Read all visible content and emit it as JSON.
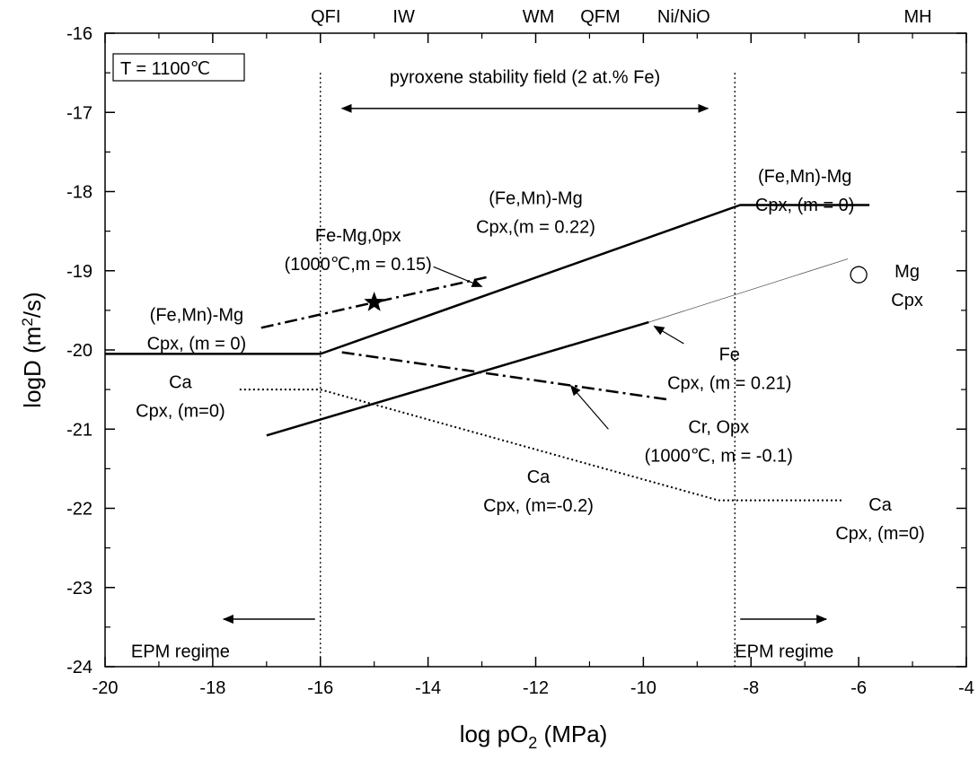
{
  "chart_data": {
    "type": "line",
    "xlabel_main": "log pO",
    "xlabel_sub": "2",
    "xlabel_unit": " (MPa)",
    "ylabel_main": "logD (m",
    "ylabel_sup": "2",
    "ylabel_unit": "/s)",
    "xlim": [
      -20,
      -4
    ],
    "ylim": [
      -24,
      -16
    ],
    "x_ticks": [
      -20,
      -18,
      -16,
      -14,
      -12,
      -10,
      -8,
      -6,
      -4
    ],
    "y_ticks": [
      -24,
      -23,
      -22,
      -21,
      -20,
      -19,
      -18,
      -17,
      -16
    ],
    "x_tick_labels": [
      "-20",
      "-18",
      "-16",
      "-14",
      "-12",
      "-10",
      "-8",
      "-6",
      "-4"
    ],
    "y_tick_labels": [
      "-24",
      "-23",
      "-22",
      "-21",
      "-20",
      "-19",
      "-18",
      "-17",
      "-16"
    ],
    "top_labels": [
      {
        "text": "QFI",
        "x": -15.9
      },
      {
        "text": "IW",
        "x": -14.45
      },
      {
        "text": "WM",
        "x": -11.95
      },
      {
        "text": "QFM",
        "x": -10.8
      },
      {
        "text": "Ni/NiO",
        "x": -9.25
      },
      {
        "text": "MH",
        "x": -4.9
      }
    ],
    "temperature_label": "T = 1100℃",
    "vlines": [
      -16,
      -8.3
    ],
    "stability_field": {
      "label": "pyroxene stability field (2 at.% Fe)",
      "x_from": -15.6,
      "x_to": -8.8,
      "y": -16.95,
      "label_y": -16.55,
      "label_x": -12.2
    },
    "epm_left": {
      "label": "EPM regime",
      "arrow_from": -16.1,
      "arrow_to": -17.8,
      "y": -23.4,
      "label_x": -18.6,
      "label_y": -23.8
    },
    "epm_right": {
      "label": "EPM regime",
      "arrow_from": -8.2,
      "arrow_to": -6.6,
      "y": -23.4,
      "label_x": -8.3,
      "label_y": -23.8
    },
    "series": [
      {
        "style": "solid",
        "color": "#000000",
        "width": 2.5,
        "x": [
          -20,
          -16,
          -8.2,
          -5.8
        ],
        "y": [
          -20.05,
          -20.05,
          -18.17,
          -18.17
        ]
      },
      {
        "style": "solid",
        "color": "#000000",
        "width": 2.5,
        "x": [
          -17,
          -9.9
        ],
        "y": [
          -21.08,
          -19.65
        ]
      },
      {
        "style": "thin",
        "color": "#555555",
        "width": 0.8,
        "x": [
          -9.9,
          -6.2
        ],
        "y": [
          -19.65,
          -18.85
        ]
      },
      {
        "style": "dashdot",
        "color": "#000000",
        "width": 2.5,
        "x": [
          -17.1,
          -12.9
        ],
        "y": [
          -19.72,
          -19.08
        ]
      },
      {
        "style": "dashdot",
        "color": "#000000",
        "width": 2.5,
        "x": [
          -15.6,
          -9.5
        ],
        "y": [
          -20.03,
          -20.63
        ]
      },
      {
        "style": "dotted",
        "color": "#000000",
        "width": 2,
        "x": [
          -17.5,
          -16,
          -8.6,
          -6.3
        ],
        "y": [
          -20.5,
          -20.5,
          -21.9,
          -21.9
        ]
      }
    ],
    "markers": [
      {
        "shape": "star",
        "x": -15.0,
        "y": -19.4
      },
      {
        "shape": "circle",
        "x": -6.0,
        "y": -19.05
      }
    ],
    "arrows": [
      {
        "x1": -13.9,
        "y1": -18.95,
        "x2": -13.0,
        "y2": -19.2
      },
      {
        "x1": -9.25,
        "y1": -19.92,
        "x2": -9.8,
        "y2": -19.7
      },
      {
        "x1": -10.65,
        "y1": -21.0,
        "x2": -11.35,
        "y2": -20.45
      }
    ],
    "annotations": [
      {
        "lines": [
          "(Fe,Mn)-Mg",
          "Cpx,(m = 0.22)"
        ],
        "x": -12.0,
        "y": -18.08
      },
      {
        "lines": [
          "(Fe,Mn)-Mg",
          "Cpx, (m = 0)"
        ],
        "x": -7.0,
        "y": -17.8
      },
      {
        "lines": [
          "Fe-Mg,0px",
          "(1000℃,m = 0.15)"
        ],
        "x": -15.3,
        "y": -18.55
      },
      {
        "lines": [
          "(Fe,Mn)-Mg",
          "Cpx, (m = 0)"
        ],
        "x": -18.3,
        "y": -19.55
      },
      {
        "lines": [
          "Mg",
          "Cpx"
        ],
        "x": -5.1,
        "y": -19.0
      },
      {
        "lines": [
          "Fe",
          "Cpx, (m = 0.21)"
        ],
        "x": -8.4,
        "y": -20.05
      },
      {
        "lines": [
          "Ca",
          "Cpx, (m=0)"
        ],
        "x": -18.6,
        "y": -20.4
      },
      {
        "lines": [
          "Cr, Opx",
          "(1000℃, m = -0.1)"
        ],
        "x": -8.6,
        "y": -20.97
      },
      {
        "lines": [
          "Ca",
          "Cpx, (m=-0.2)"
        ],
        "x": -11.95,
        "y": -21.6
      },
      {
        "lines": [
          "Ca",
          "Cpx, (m=0)"
        ],
        "x": -5.6,
        "y": -21.95
      }
    ]
  }
}
